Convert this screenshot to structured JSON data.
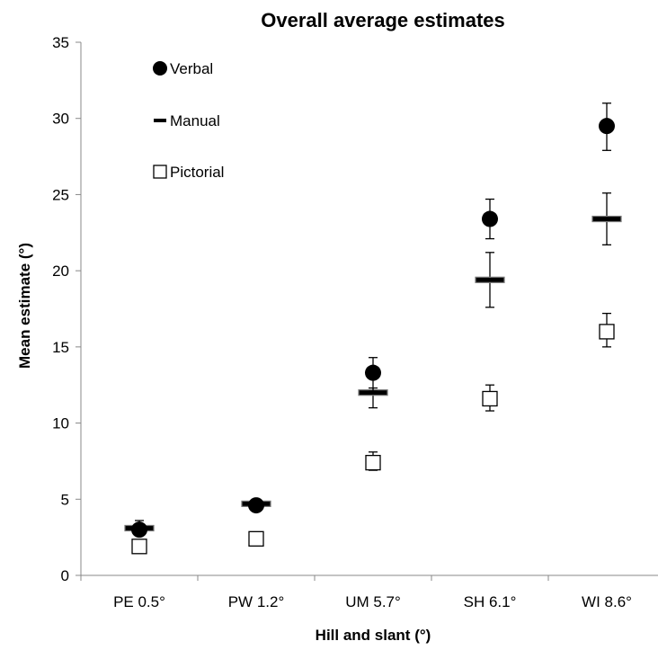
{
  "chart_data": {
    "type": "scatter",
    "title": "Overall average estimates",
    "xlabel": "Hill and slant (°)",
    "ylabel": "Mean estimate (°)",
    "categories": [
      "PE 0.5°",
      "PW 1.2°",
      "UM 5.7°",
      "SH 6.1°",
      "WI 8.6°"
    ],
    "ylim": [
      0,
      35
    ],
    "yticks": [
      0,
      5,
      10,
      15,
      20,
      25,
      30,
      35
    ],
    "grid": false,
    "legend_position": "top-left",
    "series": [
      {
        "name": "Verbal",
        "marker": "filled-circle",
        "values": [
          3.0,
          4.6,
          13.3,
          23.4,
          29.5
        ],
        "err_low": [
          2.8,
          4.4,
          12.1,
          22.1,
          27.9
        ],
        "err_high": [
          3.6,
          4.8,
          14.3,
          24.7,
          31.0
        ]
      },
      {
        "name": "Manual",
        "marker": "bar",
        "values": [
          3.1,
          4.7,
          12.0,
          19.4,
          23.4
        ],
        "err_low": [
          2.9,
          4.5,
          11.0,
          17.6,
          21.7
        ],
        "err_high": [
          3.4,
          4.9,
          12.3,
          21.2,
          25.1
        ]
      },
      {
        "name": "Pictorial",
        "marker": "open-square",
        "values": [
          1.9,
          2.4,
          7.4,
          11.6,
          16.0
        ],
        "err_low": [
          1.9,
          2.4,
          6.9,
          10.8,
          15.0
        ],
        "err_high": [
          1.9,
          2.4,
          8.1,
          12.5,
          17.2
        ]
      }
    ]
  }
}
